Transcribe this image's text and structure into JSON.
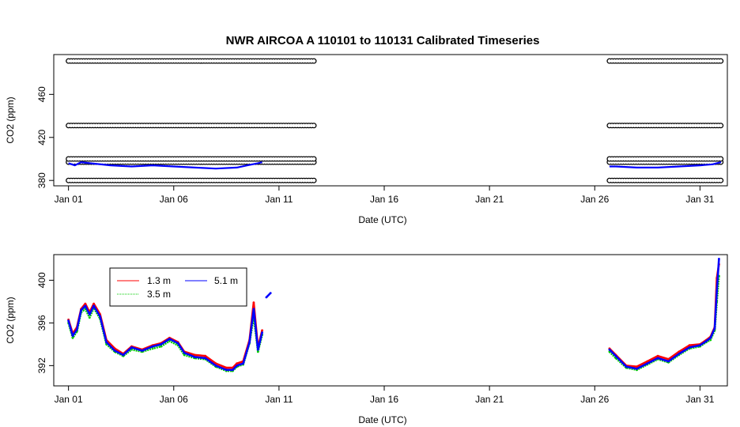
{
  "title": "NWR   AIRCOA  A    110101  to  110131   Calibrated Timeseries",
  "colors": {
    "cal": "#000000",
    "h1": "#ff0000",
    "h3": "#00cc00",
    "h5": "#0000ff"
  },
  "chart_data": [
    {
      "type": "scatter",
      "panel": "top",
      "title": "NWR   AIRCOA  A    110101  to  110131   Calibrated Timeseries",
      "xlabel": "Date (UTC)",
      "ylabel": "CO2 (ppm)",
      "xlim": [
        0.3,
        32.3
      ],
      "ylim": [
        375,
        497
      ],
      "xticks": [
        1,
        6,
        11,
        16,
        21,
        26,
        31
      ],
      "xtick_labels": [
        "Jan 01",
        "Jan 06",
        "Jan 11",
        "Jan 16",
        "Jan 21",
        "Jan 26",
        "Jan 31"
      ],
      "yticks": [
        380,
        420,
        460
      ],
      "grid": false,
      "series": [
        {
          "kind": "calibration-standards",
          "marker": "open-circle",
          "levels": [
            {
              "y": 380,
              "segments": [
                [
                  1.0,
                  12.7
                ],
                [
                  26.7,
                  32.0
                ]
              ]
            },
            {
              "y": 397,
              "segments": [
                [
                  1.0,
                  12.7
                ],
                [
                  26.7,
                  32.0
                ]
              ]
            },
            {
              "y": 400,
              "segments": [
                [
                  1.0,
                  12.7
                ],
                [
                  26.7,
                  32.0
                ]
              ]
            },
            {
              "y": 431,
              "segments": [
                [
                  1.0,
                  12.7
                ],
                [
                  26.7,
                  32.0
                ]
              ]
            },
            {
              "y": 491,
              "segments": [
                [
                  1.0,
                  12.7
                ],
                [
                  26.7,
                  32.0
                ]
              ]
            }
          ]
        },
        {
          "kind": "ambient",
          "points": [
            [
              1.0,
              396
            ],
            [
              1.3,
              394
            ],
            [
              1.6,
              397
            ],
            [
              2.0,
              396
            ],
            [
              3,
              394
            ],
            [
              4,
              393
            ],
            [
              5,
              394
            ],
            [
              6,
              393
            ],
            [
              7,
              392
            ],
            [
              8,
              391
            ],
            [
              9,
              392
            ],
            [
              9.5,
              394
            ],
            [
              10,
              396
            ],
            [
              10.2,
              397
            ]
          ]
        },
        {
          "kind": "ambient",
          "points": [
            [
              26.7,
              393
            ],
            [
              27,
              393
            ],
            [
              28,
              392
            ],
            [
              29,
              392
            ],
            [
              30,
              393
            ],
            [
              31,
              394
            ],
            [
              31.6,
              395
            ],
            [
              32.0,
              397
            ]
          ]
        }
      ]
    },
    {
      "type": "line",
      "panel": "bottom",
      "xlabel": "Date (UTC)",
      "ylabel": "CO2 (ppm)",
      "xlim": [
        0.3,
        32.3
      ],
      "ylim": [
        390.1,
        402.4
      ],
      "xticks": [
        1,
        6,
        11,
        16,
        21,
        26,
        31
      ],
      "xtick_labels": [
        "Jan 01",
        "Jan 06",
        "Jan 11",
        "Jan 16",
        "Jan 21",
        "Jan 26",
        "Jan 31"
      ],
      "yticks": [
        392,
        396,
        400
      ],
      "grid": false,
      "legend": {
        "placement": "top-left",
        "entries": [
          "1.3 m",
          "3.5 m",
          "5.1 m"
        ]
      },
      "series": [
        {
          "name": "1.3 m",
          "segments": [
            [
              [
                1.0,
                396.3
              ],
              [
                1.2,
                395.0
              ],
              [
                1.4,
                395.6
              ],
              [
                1.6,
                397.3
              ],
              [
                1.8,
                397.8
              ],
              [
                2.0,
                397.0
              ],
              [
                2.2,
                397.8
              ],
              [
                2.5,
                396.8
              ],
              [
                2.8,
                394.4
              ],
              [
                3.2,
                393.6
              ],
              [
                3.6,
                393.1
              ],
              [
                4.0,
                393.8
              ],
              [
                4.5,
                393.5
              ],
              [
                5.0,
                393.9
              ],
              [
                5.4,
                394.1
              ],
              [
                5.8,
                394.6
              ],
              [
                6.2,
                394.2
              ],
              [
                6.5,
                393.3
              ],
              [
                7.0,
                393.0
              ],
              [
                7.5,
                392.9
              ],
              [
                8.0,
                392.2
              ],
              [
                8.5,
                391.8
              ],
              [
                8.8,
                391.8
              ],
              [
                9.0,
                392.2
              ],
              [
                9.3,
                392.4
              ],
              [
                9.6,
                394.4
              ],
              [
                9.8,
                397.9
              ],
              [
                10.0,
                393.7
              ],
              [
                10.2,
                395.3
              ]
            ],
            [
              [
                26.7,
                393.6
              ],
              [
                27.0,
                393.0
              ],
              [
                27.5,
                392.0
              ],
              [
                28.0,
                391.9
              ],
              [
                28.5,
                392.4
              ],
              [
                29.0,
                392.9
              ],
              [
                29.5,
                392.6
              ],
              [
                30.0,
                393.3
              ],
              [
                30.5,
                393.9
              ],
              [
                31.0,
                394.0
              ],
              [
                31.3,
                394.4
              ],
              [
                31.5,
                394.7
              ],
              [
                31.7,
                395.6
              ],
              [
                31.8,
                400.2
              ],
              [
                31.9,
                401.5
              ]
            ]
          ]
        },
        {
          "name": "3.5 m",
          "segments": [
            [
              [
                1.0,
                396.0
              ],
              [
                1.2,
                394.6
              ],
              [
                1.4,
                395.2
              ],
              [
                1.6,
                397.0
              ],
              [
                1.8,
                397.3
              ],
              [
                2.0,
                396.5
              ],
              [
                2.2,
                397.4
              ],
              [
                2.5,
                396.4
              ],
              [
                2.8,
                394.0
              ],
              [
                3.2,
                393.3
              ],
              [
                3.6,
                392.9
              ],
              [
                4.0,
                393.5
              ],
              [
                4.5,
                393.3
              ],
              [
                5.0,
                393.6
              ],
              [
                5.4,
                393.8
              ],
              [
                5.8,
                394.3
              ],
              [
                6.2,
                393.9
              ],
              [
                6.5,
                393.0
              ],
              [
                7.0,
                392.7
              ],
              [
                7.5,
                392.6
              ],
              [
                8.0,
                391.9
              ],
              [
                8.5,
                391.5
              ],
              [
                8.8,
                391.5
              ],
              [
                9.0,
                391.9
              ],
              [
                9.3,
                392.1
              ],
              [
                9.6,
                394.1
              ],
              [
                9.8,
                396.6
              ],
              [
                10.0,
                393.3
              ],
              [
                10.2,
                394.9
              ]
            ],
            [
              [
                26.7,
                393.3
              ],
              [
                27.0,
                392.7
              ],
              [
                27.5,
                391.8
              ],
              [
                28.0,
                391.6
              ],
              [
                28.5,
                392.1
              ],
              [
                29.0,
                392.6
              ],
              [
                29.5,
                392.3
              ],
              [
                30.0,
                393.0
              ],
              [
                30.5,
                393.6
              ],
              [
                31.0,
                393.8
              ],
              [
                31.3,
                394.2
              ],
              [
                31.5,
                394.4
              ],
              [
                31.7,
                395.3
              ],
              [
                31.8,
                398.0
              ],
              [
                31.9,
                400.4
              ]
            ]
          ]
        },
        {
          "name": "5.1 m",
          "segments": [
            [
              [
                1.0,
                396.2
              ],
              [
                1.2,
                394.8
              ],
              [
                1.4,
                395.4
              ],
              [
                1.6,
                397.2
              ],
              [
                1.8,
                397.6
              ],
              [
                2.0,
                396.8
              ],
              [
                2.2,
                397.6
              ],
              [
                2.5,
                396.6
              ],
              [
                2.8,
                394.2
              ],
              [
                3.2,
                393.4
              ],
              [
                3.6,
                393.0
              ],
              [
                4.0,
                393.7
              ],
              [
                4.5,
                393.4
              ],
              [
                5.0,
                393.8
              ],
              [
                5.4,
                394.0
              ],
              [
                5.8,
                394.5
              ],
              [
                6.2,
                394.1
              ],
              [
                6.5,
                393.2
              ],
              [
                7.0,
                392.8
              ],
              [
                7.5,
                392.7
              ],
              [
                8.0,
                392.0
              ],
              [
                8.5,
                391.6
              ],
              [
                8.8,
                391.6
              ],
              [
                9.0,
                392.0
              ],
              [
                9.3,
                392.2
              ],
              [
                9.6,
                394.2
              ],
              [
                9.8,
                397.3
              ],
              [
                10.0,
                393.5
              ],
              [
                10.2,
                395.1
              ]
            ],
            [
              [
                10.4,
                398.4
              ],
              [
                10.6,
                398.8
              ]
            ],
            [
              [
                26.7,
                393.5
              ],
              [
                27.0,
                392.9
              ],
              [
                27.5,
                391.9
              ],
              [
                28.0,
                391.7
              ],
              [
                28.5,
                392.2
              ],
              [
                29.0,
                392.7
              ],
              [
                29.5,
                392.4
              ],
              [
                30.0,
                393.1
              ],
              [
                30.5,
                393.7
              ],
              [
                31.0,
                393.9
              ],
              [
                31.3,
                394.3
              ],
              [
                31.5,
                394.6
              ],
              [
                31.7,
                395.5
              ],
              [
                31.8,
                399.0
              ],
              [
                31.9,
                402.0
              ]
            ]
          ]
        }
      ]
    }
  ]
}
